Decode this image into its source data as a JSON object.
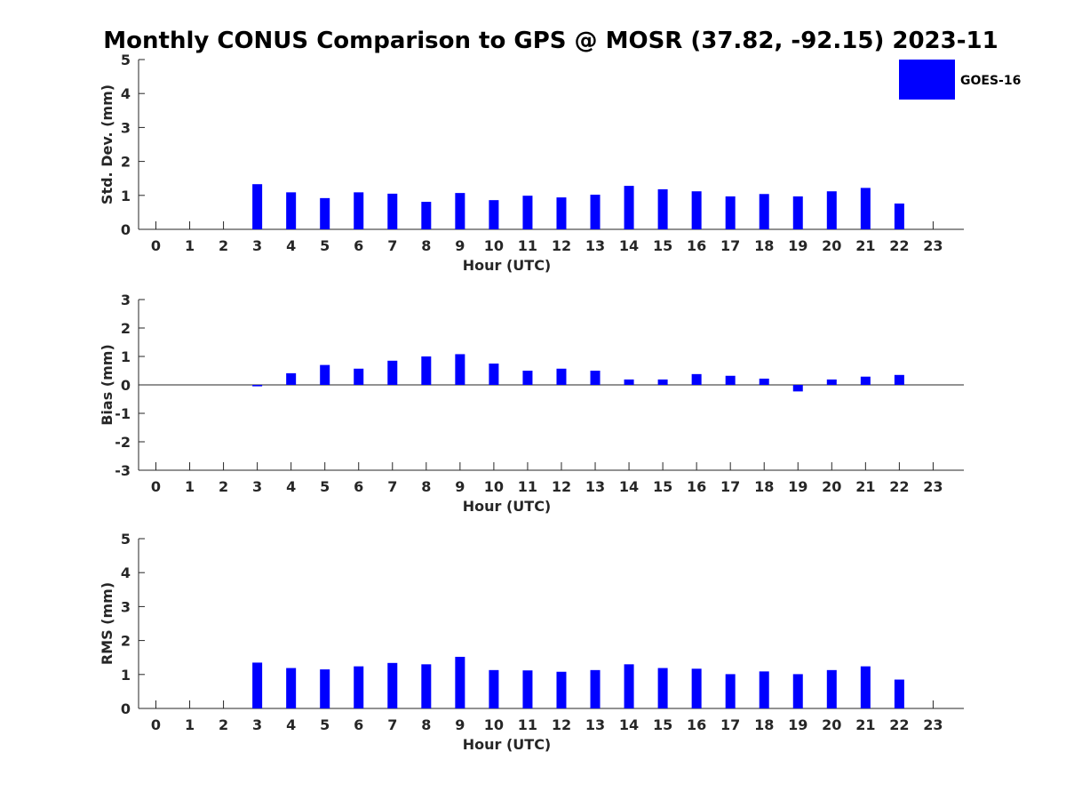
{
  "chart_data": {
    "title": "Monthly CONUS Comparison to GPS @ MOSR (37.82, -92.15) 2023-11",
    "legend": {
      "label": "GOES-16",
      "color": "#0000ff",
      "placement": "top-right"
    },
    "hours": [
      "0",
      "1",
      "2",
      "3",
      "4",
      "5",
      "6",
      "7",
      "8",
      "9",
      "10",
      "11",
      "12",
      "13",
      "14",
      "15",
      "16",
      "17",
      "18",
      "19",
      "20",
      "21",
      "22",
      "23"
    ],
    "panels": [
      {
        "id": "std",
        "type": "bar",
        "ylabel": "Std. Dev. (mm)",
        "xlabel": "Hour (UTC)",
        "ylim": [
          0,
          5
        ],
        "yticks": [
          "0",
          "1",
          "2",
          "3",
          "4",
          "5"
        ],
        "values": [
          null,
          null,
          null,
          1.33,
          1.09,
          0.92,
          1.09,
          1.05,
          0.81,
          1.07,
          0.86,
          0.99,
          0.94,
          1.02,
          1.28,
          1.18,
          1.12,
          0.97,
          1.04,
          0.97,
          1.12,
          1.22,
          0.76,
          null
        ]
      },
      {
        "id": "bias",
        "type": "bar",
        "ylabel": "Bias (mm)",
        "xlabel": "Hour (UTC)",
        "ylim": [
          -3,
          3
        ],
        "yticks": [
          "-3",
          "-2",
          "-1",
          "0",
          "1",
          "2",
          "3"
        ],
        "values": [
          null,
          null,
          null,
          -0.05,
          0.41,
          0.7,
          0.57,
          0.85,
          1.0,
          1.08,
          0.75,
          0.5,
          0.57,
          0.5,
          0.19,
          0.19,
          0.38,
          0.32,
          0.22,
          -0.23,
          0.19,
          0.29,
          0.35,
          null
        ]
      },
      {
        "id": "rms",
        "type": "bar",
        "ylabel": "RMS (mm)",
        "xlabel": "Hour (UTC)",
        "ylim": [
          0,
          5
        ],
        "yticks": [
          "0",
          "1",
          "2",
          "3",
          "4",
          "5"
        ],
        "values": [
          null,
          null,
          null,
          1.35,
          1.19,
          1.15,
          1.24,
          1.34,
          1.3,
          1.52,
          1.13,
          1.12,
          1.08,
          1.13,
          1.3,
          1.19,
          1.17,
          1.01,
          1.09,
          1.01,
          1.13,
          1.24,
          0.85,
          null
        ]
      }
    ]
  }
}
